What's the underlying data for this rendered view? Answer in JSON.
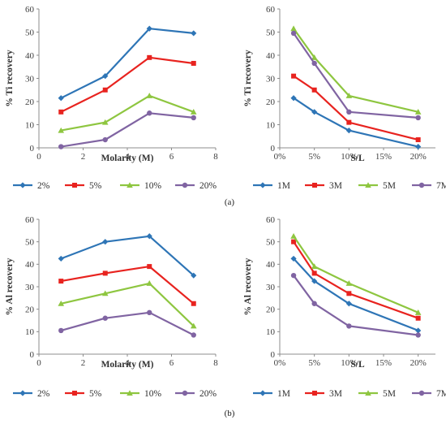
{
  "panel_labels": [
    "(a)",
    "(b)"
  ],
  "chart_data": [
    {
      "type": "line",
      "xlabel": "Molarity (M)",
      "ylabel": "% Ti  recovery",
      "xlim": [
        0,
        8
      ],
      "ylim": [
        0,
        60
      ],
      "x_ticks": [
        0,
        2,
        4,
        6,
        8
      ],
      "x_tick_labels": [
        "0",
        "2",
        "4",
        "6",
        "8"
      ],
      "y_ticks": [
        0,
        10,
        20,
        30,
        40,
        50,
        60
      ],
      "grid": false,
      "legend_position": "bottom",
      "x": [
        1,
        3,
        5,
        7
      ],
      "series": [
        {
          "name": "2%",
          "color": "#2e75b6",
          "marker": "diamond",
          "values": [
            21.5,
            31,
            51.5,
            49.5
          ]
        },
        {
          "name": "5%",
          "color": "#e8231f",
          "marker": "square",
          "values": [
            15.5,
            25,
            39,
            36.5
          ]
        },
        {
          "name": "10%",
          "color": "#8ec640",
          "marker": "triangle",
          "values": [
            7.5,
            11,
            22.5,
            15.5
          ]
        },
        {
          "name": "20%",
          "color": "#8064a2",
          "marker": "circle",
          "values": [
            0.5,
            3.5,
            15,
            13
          ]
        }
      ]
    },
    {
      "type": "line",
      "xlabel": "S/L",
      "ylabel": "% Ti  recovery",
      "xlim": [
        0,
        0.225
      ],
      "ylim": [
        0,
        60
      ],
      "x_ticks": [
        0,
        0.05,
        0.1,
        0.15,
        0.2
      ],
      "x_tick_labels": [
        "0%",
        "5%",
        "10%",
        "15%",
        "20%"
      ],
      "y_ticks": [
        0,
        10,
        20,
        30,
        40,
        50,
        60
      ],
      "grid": false,
      "legend_position": "bottom",
      "x": [
        0.02,
        0.05,
        0.1,
        0.2
      ],
      "series": [
        {
          "name": "1M",
          "color": "#2e75b6",
          "marker": "diamond",
          "values": [
            21.5,
            15.5,
            7.5,
            0.5
          ]
        },
        {
          "name": "3M",
          "color": "#e8231f",
          "marker": "square",
          "values": [
            31,
            25,
            11,
            3.5
          ]
        },
        {
          "name": "5M",
          "color": "#8ec640",
          "marker": "triangle",
          "values": [
            51.5,
            39,
            22.5,
            15.5
          ]
        },
        {
          "name": "7M",
          "color": "#8064a2",
          "marker": "circle",
          "values": [
            49.5,
            36.5,
            15.5,
            13
          ]
        }
      ]
    },
    {
      "type": "line",
      "xlabel": "Molarity (M)",
      "ylabel": "% Al  recovery",
      "xlim": [
        0,
        8
      ],
      "ylim": [
        0,
        60
      ],
      "x_ticks": [
        0,
        2,
        4,
        6,
        8
      ],
      "x_tick_labels": [
        "0",
        "2",
        "4",
        "6",
        "8"
      ],
      "y_ticks": [
        0,
        10,
        20,
        30,
        40,
        50,
        60
      ],
      "grid": false,
      "legend_position": "bottom",
      "x": [
        1,
        3,
        5,
        7
      ],
      "series": [
        {
          "name": "2%",
          "color": "#2e75b6",
          "marker": "diamond",
          "values": [
            42.5,
            50,
            52.5,
            35
          ]
        },
        {
          "name": "5%",
          "color": "#e8231f",
          "marker": "square",
          "values": [
            32.5,
            36,
            39,
            22.5
          ]
        },
        {
          "name": "10%",
          "color": "#8ec640",
          "marker": "triangle",
          "values": [
            22.5,
            27,
            31.5,
            12.5
          ]
        },
        {
          "name": "20%",
          "color": "#8064a2",
          "marker": "circle",
          "values": [
            10.5,
            16,
            18.5,
            8.5
          ]
        }
      ]
    },
    {
      "type": "line",
      "xlabel": "S/L",
      "ylabel": "% Al  recovery",
      "xlim": [
        0,
        0.225
      ],
      "ylim": [
        0,
        60
      ],
      "x_ticks": [
        0,
        0.05,
        0.1,
        0.15,
        0.2
      ],
      "x_tick_labels": [
        "0%",
        "5%",
        "10%",
        "15%",
        "20%"
      ],
      "y_ticks": [
        0,
        10,
        20,
        30,
        40,
        50,
        60
      ],
      "grid": false,
      "legend_position": "bottom",
      "x": [
        0.02,
        0.05,
        0.1,
        0.2
      ],
      "series": [
        {
          "name": "1M",
          "color": "#2e75b6",
          "marker": "diamond",
          "values": [
            42.5,
            32.5,
            22.5,
            10.5
          ]
        },
        {
          "name": "3M",
          "color": "#e8231f",
          "marker": "square",
          "values": [
            50,
            36,
            27,
            16
          ]
        },
        {
          "name": "5M",
          "color": "#8ec640",
          "marker": "triangle",
          "values": [
            52.5,
            39,
            31.5,
            18.5
          ]
        },
        {
          "name": "7M",
          "color": "#8064a2",
          "marker": "circle",
          "values": [
            35,
            22.5,
            12.5,
            8.5
          ]
        }
      ]
    }
  ]
}
